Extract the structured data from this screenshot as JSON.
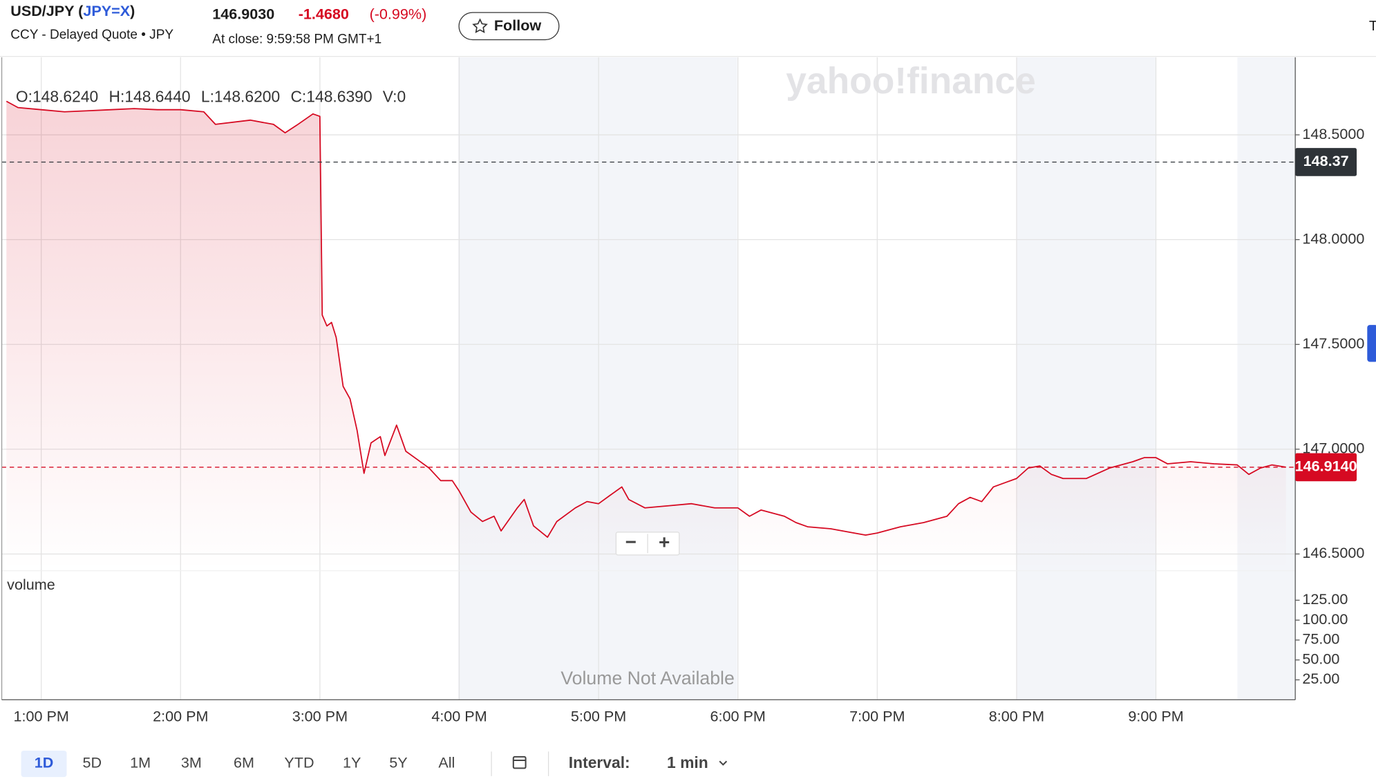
{
  "header": {
    "title_open": "USD/JPY (",
    "symbol": "JPY=X",
    "title_close": ")",
    "subtitle": "CCY - Delayed Quote • JPY",
    "price": "146.9030",
    "change": "-1.4680",
    "change_percent": "(-0.99%)",
    "close_time": "At close: 9:59:58 PM GMT+1",
    "follow": "Follow",
    "cut_tab": "T"
  },
  "watermark": "yahoo!finance",
  "ohlc": [
    "O:148.6240",
    "H:148.6440",
    "L:148.6200",
    "C:148.6390",
    "V:0"
  ],
  "zoom": [
    "−",
    "+"
  ],
  "toolbar": {
    "ranges": [
      "1D",
      "5D",
      "1M",
      "3M",
      "6M",
      "YTD",
      "1Y",
      "5Y",
      "All"
    ],
    "interval_label": "Interval:",
    "interval": "1 min"
  },
  "chart_data": [
    {
      "type": "line",
      "x": [
        "12:45 PM",
        "12:50 PM",
        "1:00 PM",
        "1:10 PM",
        "1:20 PM",
        "1:30 PM",
        "1:40 PM",
        "1:50 PM",
        "2:00 PM",
        "2:10 PM",
        "2:15 PM",
        "2:30 PM",
        "2:40 PM",
        "2:45 PM",
        "2:50 PM",
        "2:57 PM",
        "3:00 PM",
        "3:01 PM",
        "3:03 PM",
        "3:05 PM",
        "3:07 PM",
        "3:10 PM",
        "3:13 PM",
        "3:16 PM",
        "3:19 PM",
        "3:22 PM",
        "3:26 PM",
        "3:28 PM",
        "3:33 PM",
        "3:37 PM",
        "3:42 PM",
        "3:47 PM",
        "3:52 PM",
        "3:57 PM",
        "4:00 PM",
        "4:05 PM",
        "4:10 PM",
        "4:15 PM",
        "4:18 PM",
        "4:25 PM",
        "4:28 PM",
        "4:32 PM",
        "4:38 PM",
        "4:42 PM",
        "4:50 PM",
        "4:55 PM",
        "5:00 PM",
        "5:05 PM",
        "5:10 PM",
        "5:13 PM",
        "5:20 PM",
        "5:30 PM",
        "5:40 PM",
        "5:50 PM",
        "6:00 PM",
        "6:05 PM",
        "6:10 PM",
        "6:20 PM",
        "6:25 PM",
        "6:30 PM",
        "6:40 PM",
        "6:50 PM",
        "6:55 PM",
        "7:00 PM",
        "7:10 PM",
        "7:20 PM",
        "7:30 PM",
        "7:35 PM",
        "7:40 PM",
        "7:45 PM",
        "7:50 PM",
        "7:55 PM",
        "8:00 PM",
        "8:05 PM",
        "8:10 PM",
        "8:15 PM",
        "8:20 PM",
        "8:30 PM",
        "8:40 PM",
        "8:50 PM",
        "8:55 PM",
        "9:00 PM",
        "9:05 PM",
        "9:15 PM",
        "9:25 PM",
        "9:35 PM",
        "9:40 PM",
        "9:45 PM",
        "9:50 PM",
        "9:56 PM"
      ],
      "series": [
        {
          "color": "#d60a22",
          "values": [
            148.66,
            148.63,
            148.62,
            148.61,
            148.615,
            148.62,
            148.625,
            148.62,
            148.62,
            148.61,
            148.55,
            148.57,
            148.55,
            148.51,
            148.546,
            148.6,
            148.588,
            147.64,
            147.588,
            147.605,
            147.533,
            147.3,
            147.24,
            147.09,
            146.885,
            147.03,
            147.06,
            146.97,
            147.115,
            146.99,
            146.95,
            146.91,
            146.85,
            146.85,
            146.8,
            146.7,
            146.655,
            146.68,
            146.61,
            146.72,
            146.76,
            146.634,
            146.58,
            146.655,
            146.72,
            146.75,
            146.74,
            146.78,
            146.82,
            146.76,
            146.72,
            146.73,
            146.74,
            146.72,
            146.72,
            146.68,
            146.71,
            146.68,
            146.65,
            146.63,
            146.62,
            146.6,
            146.59,
            146.6,
            146.63,
            146.65,
            146.68,
            146.74,
            146.77,
            146.75,
            146.82,
            146.84,
            146.86,
            146.91,
            146.92,
            146.88,
            146.86,
            146.86,
            146.91,
            146.94,
            146.96,
            146.96,
            146.93,
            146.94,
            146.93,
            146.925,
            146.88,
            146.91,
            146.925,
            146.914
          ]
        }
      ],
      "xlim": [
        "12:43 PM",
        "10:00 PM"
      ],
      "xticks": [
        "1:00 PM",
        "2:00 PM",
        "3:00 PM",
        "4:00 PM",
        "5:00 PM",
        "6:00 PM",
        "7:00 PM",
        "8:00 PM",
        "9:00 PM"
      ],
      "ylim": [
        146.42,
        148.87
      ],
      "yticks": [
        {
          "value": 146.5,
          "label": "146.5000"
        },
        {
          "value": 147,
          "label": "147.0000"
        },
        {
          "value": 147.5,
          "label": "147.5000"
        },
        {
          "value": 148,
          "label": "148.0000"
        },
        {
          "value": 148.5,
          "label": "148.5000"
        }
      ],
      "reference_lines": [
        {
          "value": 148.37,
          "label": "148.37",
          "color": "#2e3338"
        },
        {
          "value": 146.914,
          "label": "146.9140",
          "color": "#d60a22"
        }
      ],
      "grid": true
    },
    {
      "type": "bar",
      "title": "volume",
      "annotation": "Volume Not Available",
      "ylim": [
        0,
        162
      ],
      "yticks": [
        {
          "value": 25,
          "label": "25.00"
        },
        {
          "value": 50,
          "label": "50.00"
        },
        {
          "value": 75,
          "label": "75.00"
        },
        {
          "value": 100,
          "label": "100.00"
        },
        {
          "value": 125,
          "label": "125.00"
        }
      ]
    }
  ]
}
